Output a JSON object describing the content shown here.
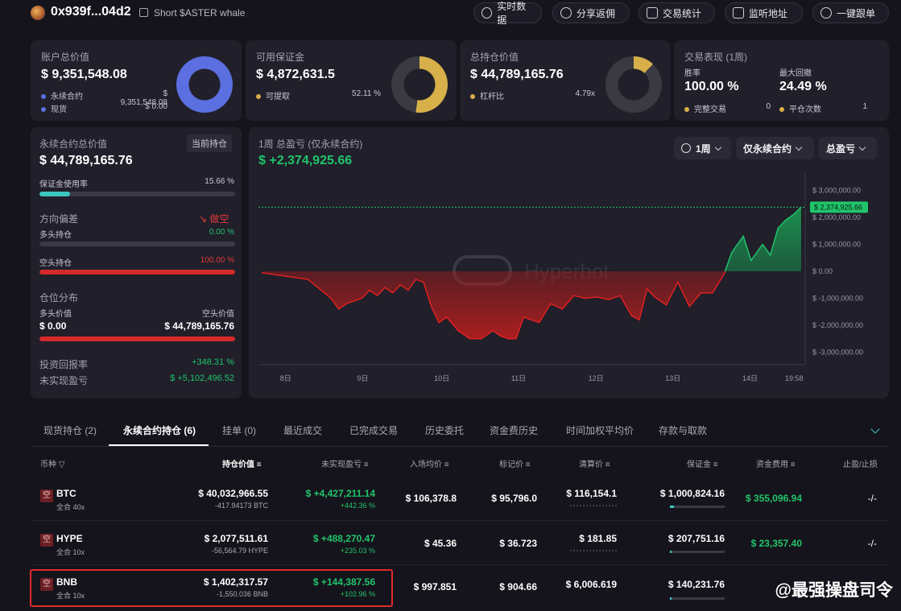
{
  "header": {
    "address": "0x939f...04d2",
    "tag": "Short $ASTER whale",
    "buttons": [
      "实时数据",
      "分享返佣",
      "交易统计",
      "监听地址",
      "一键跟单"
    ]
  },
  "account": {
    "title": "账户总价值",
    "value": "$ 9,351,548.08",
    "perp_label": "永续合约",
    "perp_value": "$ 9,351,548.08",
    "spot_label": "现货",
    "spot_value": "$ 0.00",
    "perp_share": 1.0
  },
  "margin": {
    "title": "可用保证金",
    "value": "$ 4,872,631.5",
    "withdraw_label": "可提取",
    "withdraw_pct": "52.11 %",
    "fraction": 0.5211
  },
  "position_total": {
    "title": "总持仓价值",
    "value": "$ 44,789,165.76",
    "leverage_label": "杠杆比",
    "leverage_value": "4.79x"
  },
  "performance": {
    "title": "交易表现 (1周)",
    "winrate_label": "胜率",
    "winrate": "100.00 %",
    "drawdown_label": "最大回撤",
    "drawdown": "24.49 %",
    "completed_label": "完整交易",
    "completed": "0",
    "closes_label": "平仓次数",
    "closes": "1"
  },
  "perp_panel": {
    "title": "永续合约总价值",
    "badge": "当前持仓",
    "value": "$ 44,789,165.76",
    "margin_usage_label": "保证金使用率",
    "margin_usage": "15.66 %",
    "margin_usage_frac": 0.1566,
    "bias_label": "方向偏差",
    "bias_value": "做空",
    "long_label": "多头持仓",
    "long_pct": "0.00 %",
    "short_label": "空头持仓",
    "short_pct": "100.00 %",
    "dist_label": "仓位分布",
    "long_value_label": "多头价值",
    "short_value_label": "空头价值",
    "long_value": "$ 0.00",
    "short_value": "$ 44,789,165.76",
    "roi_label": "投资回报率",
    "roi": "+348.31 %",
    "upnl_label": "未实现盈亏",
    "upnl": "$ +5,102,496.52"
  },
  "pnl_chart": {
    "title": "1周 总盈亏 (仅永续合约)",
    "value": "$ +2,374,925.66",
    "period": "1周",
    "filter": "仅永续合约",
    "metric": "总盈亏",
    "watermark": "Hyperbot",
    "current_label": "$ 2,374,925.66"
  },
  "chart_data": {
    "type": "area",
    "x_ticks": [
      "8日",
      "9日",
      "10日",
      "11日",
      "12日",
      "13日",
      "14日",
      "19:58"
    ],
    "y_ticks": [
      "$ 3,000,000.00",
      "$ 2,000,000.00",
      "$ 1,000,000.00",
      "$ 0.00",
      "$ -1,000,000.00",
      "$ -2,000,000.00",
      "$ -3,000,000.00"
    ],
    "ylim": [
      -3400000,
      3400000
    ],
    "x_points": [
      0,
      0.6,
      0.9,
      1.0,
      1.1,
      1.3,
      1.4,
      1.5,
      1.6,
      1.7,
      1.8,
      1.9,
      2.0,
      2.1,
      2.2,
      2.3,
      2.4,
      2.55,
      2.7,
      2.85,
      3.0,
      3.1,
      3.2,
      3.3,
      3.4,
      3.5,
      3.6,
      3.75,
      3.9,
      4.05,
      4.2,
      4.35,
      4.5,
      4.65,
      4.8,
      4.9,
      5.0,
      5.1,
      5.25,
      5.4,
      5.55,
      5.7,
      5.85,
      6.0,
      6.1,
      6.25,
      6.35,
      6.5,
      6.6,
      6.7,
      6.8,
      6.9,
      7.0
    ],
    "values": [
      -50000,
      -300000,
      -1000000,
      -1400000,
      -1200000,
      -1000000,
      -700000,
      -900000,
      -600000,
      -800000,
      -500000,
      -700000,
      -300000,
      -400000,
      -1300000,
      -1900000,
      -1700000,
      -2200000,
      -2500000,
      -2500000,
      -2200000,
      -2400000,
      -2500000,
      -2500000,
      -1700000,
      -1800000,
      -1900000,
      -1200000,
      -1400000,
      -900000,
      -1000000,
      -950000,
      -1050000,
      -900000,
      -1650000,
      -1800000,
      -650000,
      -950000,
      -1250000,
      -400000,
      -1300000,
      -800000,
      -800000,
      -100000,
      700000,
      1300000,
      400000,
      1000000,
      600000,
      1600000,
      1900000,
      2100000,
      2374925.66
    ]
  },
  "tabs": [
    "现货持仓 (2)",
    "永续合约持仓 (6)",
    "挂单 (0)",
    "最近成交",
    "已完成交易",
    "历史委托",
    "资金费历史",
    "时间加权平均价",
    "存款与取款"
  ],
  "table": {
    "headers": [
      "币种",
      "持仓价值",
      "未实现盈亏",
      "入场均价",
      "标记价",
      "清算价",
      "保证金",
      "资金费用",
      "止盈/止损"
    ],
    "rows": [
      {
        "side": "空",
        "coin": "BTC",
        "lev": "全合 40x",
        "value": "$ 40,032,966.55",
        "size": "-417.94173 BTC",
        "upnl": "$ +4,427,211.14",
        "upnl_pct": "+442.36 %",
        "entry": "$ 106,378.8",
        "mark": "$ 95,796.0",
        "liq": "$ 116,154.1",
        "margin": "$ 1,000,824.16",
        "funding": "$ 355,096.94",
        "tpsl": "-/-"
      },
      {
        "side": "空",
        "coin": "HYPE",
        "lev": "全合 10x",
        "value": "$ 2,077,511.61",
        "size": "-56,564.79 HYPE",
        "upnl": "$ +488,270.47",
        "upnl_pct": "+235.03 %",
        "entry": "$ 45.36",
        "mark": "$ 36.723",
        "liq": "$ 181.85",
        "margin": "$ 207,751.16",
        "funding": "$ 23,357.40",
        "tpsl": "-/-"
      },
      {
        "side": "空",
        "coin": "BNB",
        "lev": "全合 10x",
        "value": "$ 1,402,317.57",
        "size": "-1,550.036 BNB",
        "upnl": "$ +144,387.56",
        "upnl_pct": "+102.96 %",
        "entry": "$ 997.851",
        "mark": "$ 904.66",
        "liq": "$ 6,006.619",
        "margin": "$ 140,231.76",
        "funding": "",
        "tpsl": ""
      }
    ]
  },
  "watermark_text": "@最强操盘司令"
}
